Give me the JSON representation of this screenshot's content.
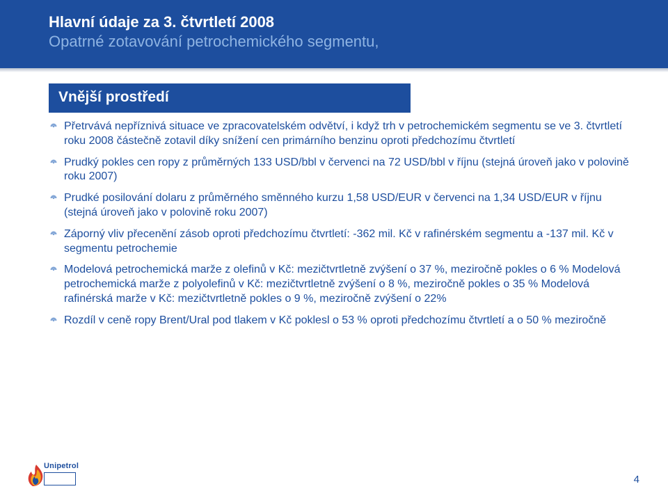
{
  "colors": {
    "brand_blue": "#1d4e9e",
    "header_sub_blue": "#8fb4e3",
    "white": "#ffffff",
    "flame_red": "#d83a2f",
    "flame_orange": "#f4a21c",
    "flame_blue": "#1d4e9e"
  },
  "header": {
    "line1": "Hlavní údaje za 3. čtvrtletí 2008",
    "line2": "Opatrné zotavování petrochemického segmentu,"
  },
  "subheader": "Vnější prostředí",
  "bullets": [
    "Přetrvává nepříznivá situace ve zpracovatelském odvětví, i když trh v petrochemickém segmentu se ve 3. čtvrtletí roku 2008 částečně zotavil díky snížení cen primárního benzinu oproti předchozímu čtvrtletí",
    "Prudký pokles cen ropy z průměrných 133 USD/bbl v červenci na 72 USD/bbl v říjnu (stejná úroveň jako v polovině roku 2007)",
    "Prudké posilování dolaru z průměrného směnného kurzu 1,58 USD/EUR v červenci na 1,34 USD/EUR v říjnu (stejná úroveň jako v polovině roku 2007)",
    "Záporný vliv přecenění zásob oproti předchozímu čtvrtletí: -362 mil. Kč v rafinérském segmentu a -137 mil. Kč v segmentu petrochemie",
    "Modelová petrochemická marže z olefinů v Kč: mezičtvrtletně zvýšení o 37 %, meziročně pokles o 6 % Modelová petrochemická marže z polyolefinů v Kč: mezičtvrtletně zvýšení o 8 %, meziročně pokles o 35 % Modelová rafinérská marže v Kč: mezičtvrtletně pokles o 9 %, meziročně zvýšení o 22%",
    "Rozdíl v ceně ropy Brent/Ural pod tlakem  v Kč poklesl o 53 % oproti předchozímu čtvrtletí a o 50 % meziročně"
  ],
  "footer": {
    "page_number": "4",
    "logo_text": "Unipetrol"
  }
}
